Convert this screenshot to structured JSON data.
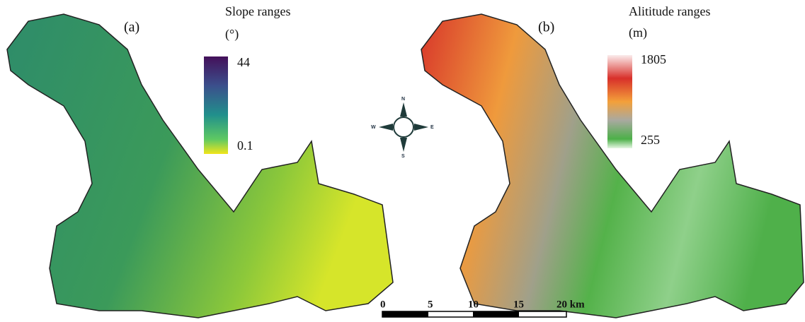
{
  "panels": [
    {
      "label": "(a)",
      "legend": {
        "title": "Slope ranges",
        "unit": "(°)",
        "max": 44,
        "min": 0.1
      }
    },
    {
      "label": "(b)",
      "legend": {
        "title": "Alititude ranges",
        "unit": "(m)",
        "max": 1805,
        "min": 255
      }
    }
  ],
  "compass": {
    "n": "N",
    "e": "E",
    "s": "S",
    "w": "W"
  },
  "scale_bar": {
    "labels": [
      "0",
      "5",
      "10",
      "15",
      "20 km"
    ]
  }
}
